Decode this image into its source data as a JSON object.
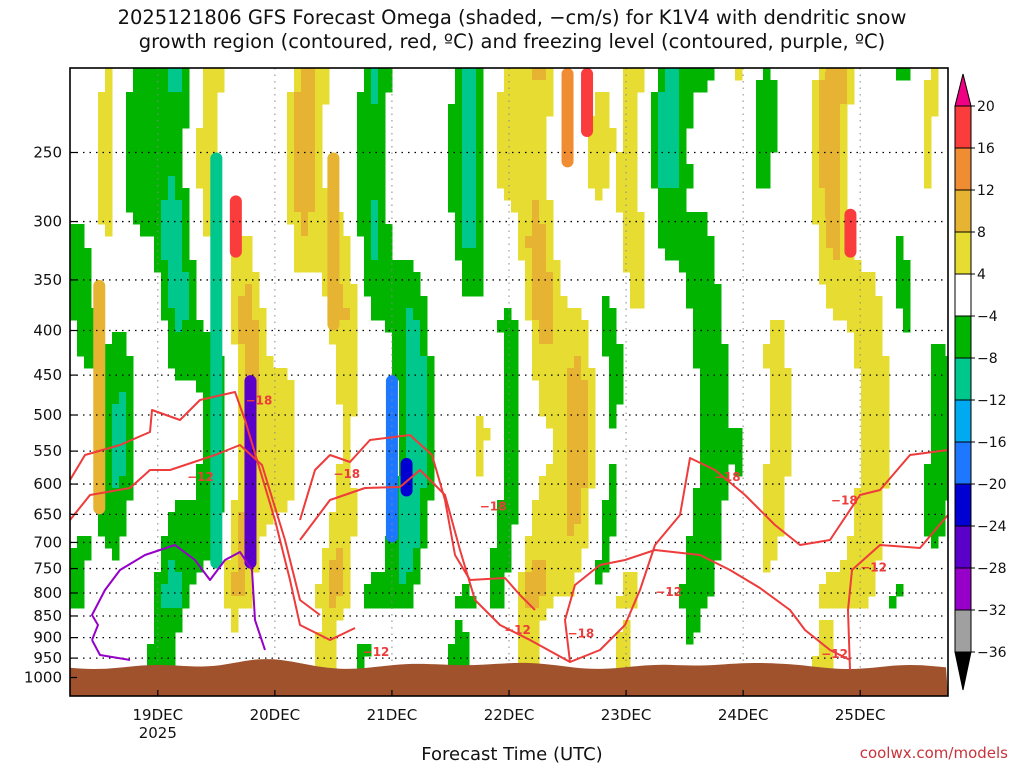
{
  "title_line1": "2025121806 GFS Forecast Omega (shaded, −cm/s) for K1V4 with dendritic snow",
  "title_line2": "growth region (contoured, red, ºC) and freezing level (contoured, purple, ºC)",
  "credit": "coolwx.com/models",
  "chart_data": {
    "type": "heatmap",
    "title": "2025121806 GFS Forecast Omega (shaded, −cm/s) for K1V4 with dendritic snow growth region (contoured, red, ºC) and freezing level (contoured, purple, ºC)",
    "xlabel": "Forecast Time (UTC)",
    "ylabel": "",
    "y_scale": "log-pressure",
    "y_reversed": true,
    "ylim": [
      1050,
      200
    ],
    "xlim": [
      "2025-12-18T06",
      "2025-12-25T18"
    ],
    "x_ticks": [
      {
        "label": "19DEC",
        "sub": "2025",
        "time": "2025-12-19T00"
      },
      {
        "label": "20DEC",
        "sub": "",
        "time": "2025-12-20T00"
      },
      {
        "label": "21DEC",
        "sub": "",
        "time": "2025-12-21T00"
      },
      {
        "label": "22DEC",
        "sub": "",
        "time": "2025-12-22T00"
      },
      {
        "label": "23DEC",
        "sub": "",
        "time": "2025-12-23T00"
      },
      {
        "label": "24DEC",
        "sub": "",
        "time": "2025-12-24T00"
      },
      {
        "label": "25DEC",
        "sub": "",
        "time": "2025-12-25T00"
      }
    ],
    "y_ticks": [
      250,
      300,
      350,
      400,
      450,
      500,
      550,
      600,
      650,
      700,
      750,
      800,
      850,
      900,
      950,
      1000
    ],
    "grid": true,
    "colorbar": {
      "levels": [
        -36,
        -32,
        -28,
        -24,
        -20,
        -16,
        -12,
        -8,
        -4,
        4,
        8,
        12,
        16,
        20
      ],
      "colors": [
        "#000000",
        "#a0a0a0",
        "#9600c8",
        "#5a00c8",
        "#0000d2",
        "#1e78ff",
        "#00aaf0",
        "#00c88c",
        "#00b400",
        "#ffffff",
        "#e6dc32",
        "#e6b432",
        "#f08c32",
        "#fa3c3c",
        "#f00082"
      ],
      "units": "−cm/s"
    },
    "omega_samples": [
      {
        "time": "2025-12-18T12",
        "p_range": [
          350,
          650
        ],
        "value": 10
      },
      {
        "time": "2025-12-19T12",
        "p_range": [
          250,
          750
        ],
        "value": -10
      },
      {
        "time": "2025-12-19T16",
        "p_range": [
          280,
          330
        ],
        "value": 18
      },
      {
        "time": "2025-12-19T19",
        "p_range": [
          450,
          750
        ],
        "value": -26
      },
      {
        "time": "2025-12-20T12",
        "p_range": [
          250,
          400
        ],
        "value": 10
      },
      {
        "time": "2025-12-21T00",
        "p_range": [
          450,
          700
        ],
        "value": -18
      },
      {
        "time": "2025-12-21T03",
        "p_range": [
          560,
          620
        ],
        "value": -22
      },
      {
        "time": "2025-12-22T12",
        "p_range": [
          200,
          260
        ],
        "value": 14
      },
      {
        "time": "2025-12-22T16",
        "p_range": [
          200,
          240
        ],
        "value": 18
      },
      {
        "time": "2025-12-24T18",
        "p_range": [
          200,
          300
        ],
        "value": 10
      },
      {
        "time": "2025-12-24T22",
        "p_range": [
          290,
          330
        ],
        "value": 18
      }
    ],
    "series": [
      {
        "name": "-12",
        "color": "#ee3b3b",
        "label_points": [
          {
            "time": "2025-12-19T06",
            "p": 592
          },
          {
            "time": "2025-12-20T18",
            "p": 940
          },
          {
            "time": "2025-12-21T23",
            "p": 887
          },
          {
            "time": "2025-12-23T06",
            "p": 802
          },
          {
            "time": "2025-12-24T16",
            "p": 945
          },
          {
            "time": "2025-12-25T00",
            "p": 752
          }
        ]
      },
      {
        "name": "-18",
        "color": "#ee3b3b",
        "label_points": [
          {
            "time": "2025-12-19T18",
            "p": 484
          },
          {
            "time": "2025-12-20T12",
            "p": 587
          },
          {
            "time": "2025-12-21T18",
            "p": 640
          },
          {
            "time": "2025-12-22T12",
            "p": 895
          },
          {
            "time": "2025-12-23T18",
            "p": 592
          },
          {
            "time": "2025-12-24T18",
            "p": 630
          }
        ]
      },
      {
        "name": "0",
        "color": "#9600c8",
        "label_points": []
      }
    ]
  }
}
